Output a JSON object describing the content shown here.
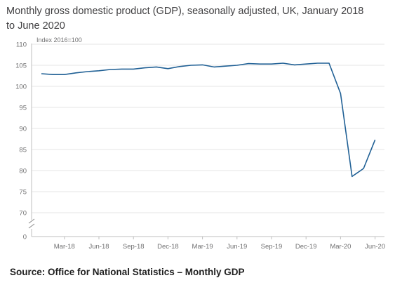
{
  "chart_data": {
    "type": "line",
    "title": "Monthly gross domestic product (GDP), seasonally adjusted, UK, January 2018 to June 2020",
    "ylabel": "Index 2016=100",
    "xlabel": "",
    "ylim": [
      0,
      110
    ],
    "y_axis_break": [
      0,
      70
    ],
    "y_ticks": [
      "110",
      "105",
      "100",
      "95",
      "90",
      "85",
      "80",
      "75",
      "70",
      "0"
    ],
    "x_tick_labels": [
      "Mar-18",
      "Jun-18",
      "Sep-18",
      "Dec-18",
      "Mar-19",
      "Jun-19",
      "Sep-19",
      "Dec-19",
      "Mar-20",
      "Jun-20"
    ],
    "grid": true,
    "legend": "none",
    "color": "#206095",
    "series": [
      {
        "x": [
          "Jan-18",
          "Feb-18",
          "Mar-18",
          "Apr-18",
          "May-18",
          "Jun-18",
          "Jul-18",
          "Aug-18",
          "Sep-18",
          "Oct-18",
          "Nov-18",
          "Dec-18",
          "Jan-19",
          "Feb-19",
          "Mar-19",
          "Apr-19",
          "May-19",
          "Jun-19",
          "Jul-19",
          "Aug-19",
          "Sep-19",
          "Oct-19",
          "Nov-19",
          "Dec-19",
          "Jan-20",
          "Feb-20",
          "Mar-20",
          "Apr-20",
          "May-20",
          "Jun-20"
        ],
        "values": [
          103.0,
          102.8,
          102.8,
          103.2,
          103.5,
          103.7,
          104.0,
          104.1,
          104.1,
          104.4,
          104.6,
          104.2,
          104.7,
          105.0,
          105.1,
          104.6,
          104.8,
          105.0,
          105.4,
          105.3,
          105.3,
          105.5,
          105.1,
          105.3,
          105.5,
          105.5,
          98.3,
          78.6,
          80.5,
          87.3
        ]
      }
    ]
  },
  "source": "Source: Office for National Statistics – Monthly GDP"
}
